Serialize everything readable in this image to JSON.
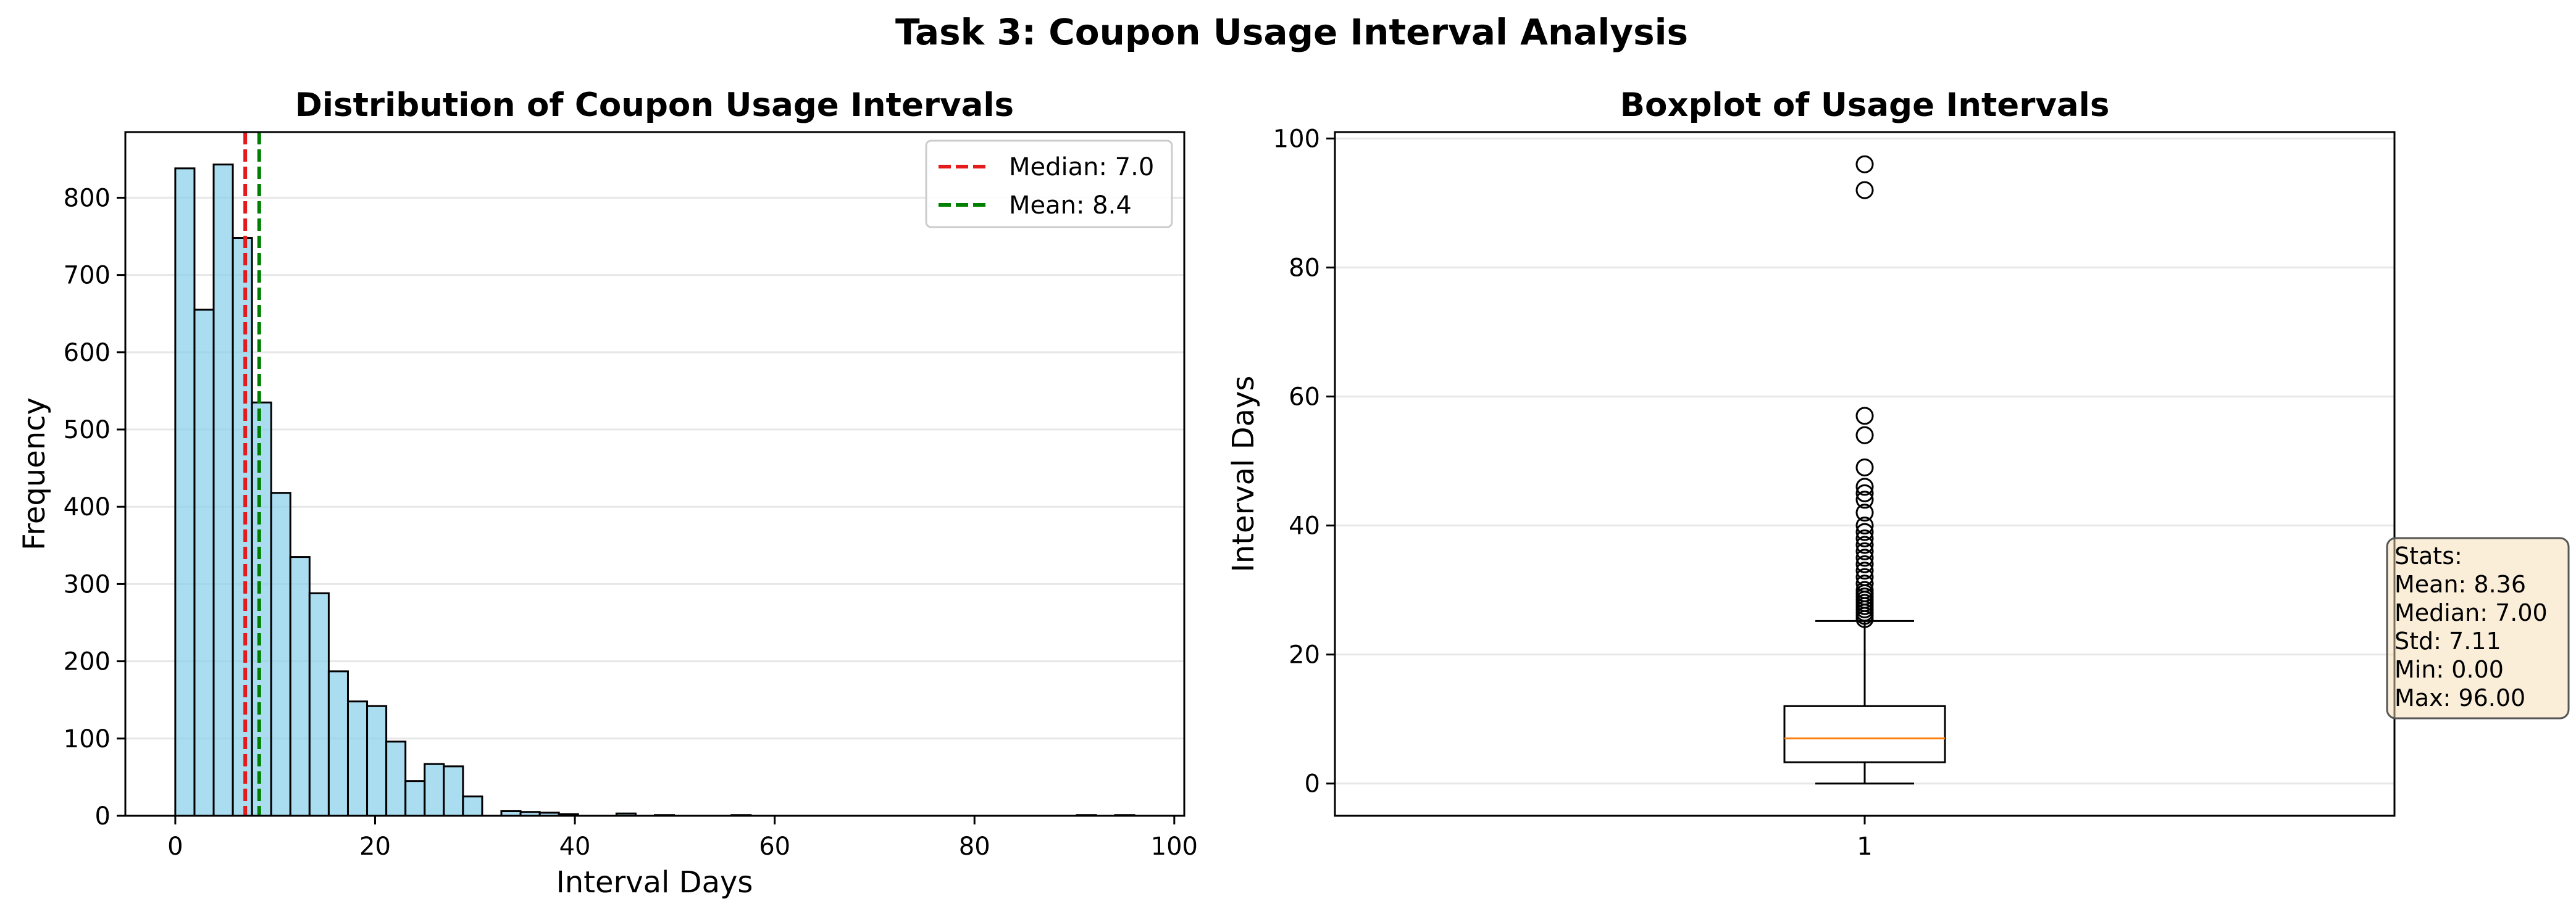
{
  "suptitle": "Task 3: Coupon Usage Interval Analysis",
  "chart_data": [
    {
      "type": "bar",
      "subtype": "histogram",
      "title": "Distribution of Coupon Usage Intervals",
      "xlabel": "Interval Days",
      "ylabel": "Frequency",
      "xlim": [
        -5,
        101
      ],
      "ylim": [
        0,
        885
      ],
      "xticks": [
        0,
        20,
        40,
        60,
        80,
        100
      ],
      "yticks": [
        0,
        100,
        200,
        300,
        400,
        500,
        600,
        700,
        800
      ],
      "grid": "y",
      "bar_color": "#87ceeb",
      "bin_width": 1.92,
      "bins": [
        {
          "x0": 0.0,
          "count": 838
        },
        {
          "x0": 1.92,
          "count": 655
        },
        {
          "x0": 3.84,
          "count": 843
        },
        {
          "x0": 5.76,
          "count": 748
        },
        {
          "x0": 7.68,
          "count": 535
        },
        {
          "x0": 9.6,
          "count": 418
        },
        {
          "x0": 11.52,
          "count": 335
        },
        {
          "x0": 13.44,
          "count": 288
        },
        {
          "x0": 15.36,
          "count": 187
        },
        {
          "x0": 17.28,
          "count": 148
        },
        {
          "x0": 19.2,
          "count": 142
        },
        {
          "x0": 21.12,
          "count": 96
        },
        {
          "x0": 23.04,
          "count": 45
        },
        {
          "x0": 24.96,
          "count": 67
        },
        {
          "x0": 26.88,
          "count": 64
        },
        {
          "x0": 28.8,
          "count": 25
        },
        {
          "x0": 32.64,
          "count": 6
        },
        {
          "x0": 34.56,
          "count": 5
        },
        {
          "x0": 36.48,
          "count": 4
        },
        {
          "x0": 38.4,
          "count": 2
        },
        {
          "x0": 44.16,
          "count": 3
        },
        {
          "x0": 48.0,
          "count": 1
        },
        {
          "x0": 55.68,
          "count": 1
        },
        {
          "x0": 90.24,
          "count": 1
        },
        {
          "x0": 94.08,
          "count": 1
        }
      ],
      "vlines": [
        {
          "x": 7.0,
          "color": "#e41a1c",
          "label": "Median: 7.0"
        },
        {
          "x": 8.4,
          "color": "#008000",
          "label": "Mean: 8.4"
        }
      ],
      "legend": "top-right"
    },
    {
      "type": "boxplot",
      "title": "Boxplot of Usage Intervals",
      "ylabel": "Interval Days",
      "xticks": [
        "1"
      ],
      "ylim": [
        -5,
        101
      ],
      "yticks": [
        0,
        20,
        40,
        60,
        80,
        100
      ],
      "grid": "y",
      "whisker_low": 0,
      "q1": 3.3,
      "median": 7.0,
      "q3": 12.0,
      "whisker_high": 25.2,
      "outliers": [
        25.5,
        26,
        26.5,
        27,
        27.5,
        28,
        28.5,
        29,
        29.5,
        30,
        31,
        32,
        33,
        34,
        35,
        36,
        37,
        38,
        39,
        40,
        42,
        44,
        45,
        46,
        49,
        54,
        57,
        92,
        96
      ],
      "stats_box": {
        "lines": [
          "Stats:",
          "Mean: 8.36",
          "Median: 7.00",
          "Std: 7.11",
          "Min: 0.00",
          "Max: 96.00"
        ]
      }
    }
  ]
}
